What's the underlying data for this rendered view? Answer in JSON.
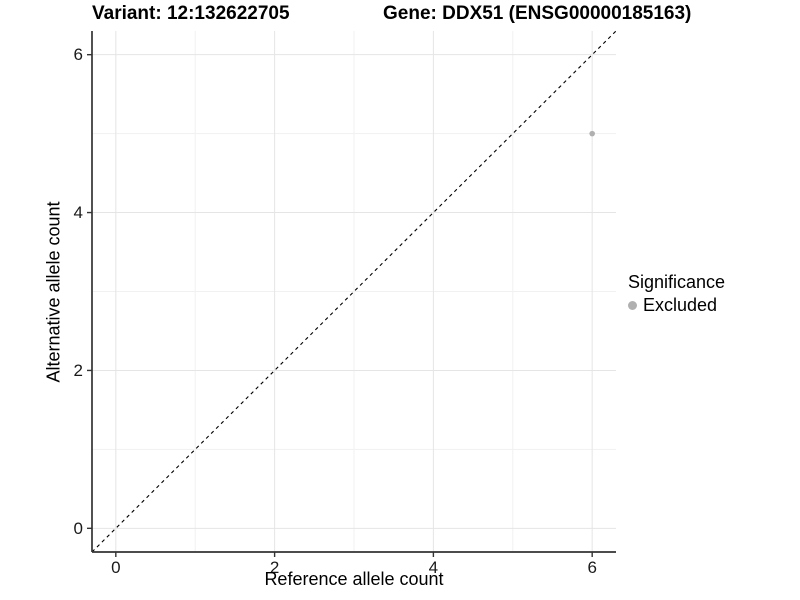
{
  "chart_data": {
    "type": "scatter",
    "title_left": "Variant: 12:132622705",
    "title_right": "Gene: DDX51 (ENSG00000185163)",
    "xlabel": "Reference allele count",
    "ylabel": "Alternative allele count",
    "xlim": [
      -0.3,
      6.3
    ],
    "ylim": [
      -0.3,
      6.3
    ],
    "x_major_ticks": [
      0,
      2,
      4,
      6
    ],
    "y_major_ticks": [
      0,
      2,
      4,
      6
    ],
    "x_minor_ticks": [
      1,
      3,
      5
    ],
    "y_minor_ticks": [
      1,
      3,
      5
    ],
    "grid": true,
    "reference_line": {
      "type": "identity",
      "style": "dashed",
      "color": "#000000"
    },
    "points": [
      {
        "x": 6,
        "y": 5,
        "series": "Excluded"
      }
    ],
    "legend": {
      "title": "Significance",
      "position": "right",
      "items": [
        {
          "label": "Excluded",
          "color": "#b0b0b0"
        }
      ]
    },
    "colors": {
      "point": "#b0b0b0",
      "grid_major": "#e5e5e5",
      "grid_minor": "#f1f1f1",
      "axis_line": "#333333",
      "dashed_line": "#000000"
    }
  }
}
